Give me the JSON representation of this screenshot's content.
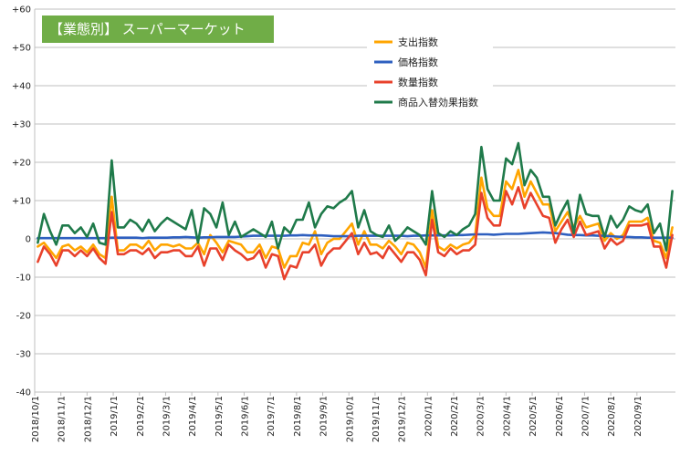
{
  "chart_data": {
    "type": "line",
    "title": "【業態別】 スーパーマーケット",
    "title_bg_color": "#70ad47",
    "ylim": [
      -40,
      60
    ],
    "yticks": [
      -40,
      -30,
      -20,
      -10,
      0,
      10,
      20,
      30,
      40,
      50,
      60
    ],
    "ytick_labels": [
      "-40",
      "-30",
      "-20",
      "-10",
      "0",
      "+10",
      "+20",
      "+30",
      "+40",
      "+50",
      "+60"
    ],
    "x_tick_labels": [
      "2018/10/1",
      "2018/11/1",
      "2018/12/1",
      "2019/1/1",
      "2019/2/1",
      "2019/3/1",
      "2019/4/1",
      "2019/5/1",
      "2019/6/1",
      "2019/7/1",
      "2019/8/1",
      "2019/9/1",
      "2019/10/1",
      "2019/11/1",
      "2019/12/1",
      "2020/1/1",
      "2020/2/1",
      "2020/3/1",
      "2020/4/1",
      "2020/5/1",
      "2020/6/1",
      "2020/7/1",
      "2020/8/1",
      "2020/9/1"
    ],
    "points_per_month": 4.25,
    "grid": "horizontal",
    "legend_position": "top-right",
    "series": [
      {
        "name": "支出指数",
        "color": "#ffa500",
        "values": [
          -2,
          -1,
          -3,
          -5,
          -2,
          -1.5,
          -3,
          -2,
          -3.5,
          -1.5,
          -4,
          -5,
          11,
          -3,
          -3,
          -1.5,
          -1.5,
          -2.5,
          -0.5,
          -3,
          -1.5,
          -1.5,
          -2,
          -1.5,
          -2.5,
          -2.5,
          -1,
          -4,
          1,
          -1,
          -3.5,
          -0.5,
          -1,
          -1.5,
          -3.5,
          -3.5,
          -1.5,
          -5,
          -2,
          -2.5,
          -7.5,
          -4.5,
          -4.5,
          -1,
          -1.5,
          2,
          -4,
          -1,
          0,
          0,
          2,
          4,
          -1.5,
          2,
          -1.5,
          -1.5,
          -2.5,
          -0.5,
          -2,
          -4,
          -1,
          -1.5,
          -3.5,
          -7.5,
          7.5,
          -2,
          -3,
          -1.5,
          -2.5,
          -1.5,
          -1,
          1,
          16,
          8,
          6,
          6,
          15,
          13,
          18,
          11,
          15,
          12,
          9,
          9,
          2,
          4.5,
          7,
          3,
          6,
          3,
          3.5,
          4,
          -0.5,
          1.5,
          0,
          1,
          4.5,
          4.5,
          4.5,
          5.5,
          -0.5,
          -1,
          -5,
          3
        ]
      },
      {
        "name": "価格指数",
        "color": "#2e5fbf",
        "values": [
          0.2,
          0.2,
          0.2,
          0.2,
          0.2,
          0.2,
          0.2,
          0.2,
          0.2,
          0.2,
          0.2,
          0.2,
          0.3,
          0.3,
          0.3,
          0.3,
          0.3,
          0.2,
          0.3,
          0.3,
          0.3,
          0.3,
          0.4,
          0.4,
          0.5,
          0.4,
          0.3,
          0.4,
          0.4,
          0.5,
          0.5,
          0.5,
          0.5,
          0.6,
          0.7,
          0.8,
          0.8,
          0.8,
          0.8,
          0.8,
          0.8,
          0.9,
          0.9,
          1,
          0.9,
          0.9,
          0.9,
          0.8,
          0.7,
          0.7,
          0.7,
          0.7,
          0.8,
          0.8,
          0.8,
          0.8,
          0.8,
          0.8,
          0.8,
          0.8,
          0.7,
          0.8,
          0.8,
          0.9,
          0.9,
          0.9,
          0.9,
          0.9,
          1,
          1,
          1.1,
          1.2,
          1.2,
          1.2,
          1.1,
          1.2,
          1.3,
          1.3,
          1.3,
          1.4,
          1.5,
          1.6,
          1.7,
          1.6,
          1.5,
          1.3,
          1.1,
          1,
          1,
          0.9,
          0.9,
          0.8,
          0.8,
          0.7,
          0.6,
          0.5,
          0.5,
          0.4,
          0.4,
          0.3,
          0.3,
          0.3,
          0.3,
          0.3
        ]
      },
      {
        "name": "数量指数",
        "color": "#e8412b",
        "values": [
          -6,
          -2,
          -4,
          -7,
          -3,
          -3,
          -4.5,
          -3,
          -4.5,
          -2.5,
          -5,
          -6.5,
          7,
          -4,
          -4,
          -3,
          -3,
          -4,
          -2.5,
          -5,
          -3.5,
          -3.5,
          -3,
          -3,
          -4.5,
          -4.5,
          -2,
          -7,
          -2.5,
          -2.5,
          -5.5,
          -1.5,
          -3,
          -4,
          -5.5,
          -5,
          -3,
          -7.5,
          -4,
          -4.5,
          -10.5,
          -7,
          -7.5,
          -3.5,
          -3.5,
          -1.5,
          -7,
          -4,
          -2.5,
          -2.5,
          -0.5,
          1.5,
          -4,
          -1,
          -4,
          -3.5,
          -5,
          -2,
          -4,
          -6,
          -3.5,
          -3.5,
          -5.5,
          -9.5,
          5,
          -3.5,
          -4.5,
          -2.5,
          -4,
          -3,
          -3,
          -1.5,
          12,
          5.5,
          3.5,
          3.5,
          12.5,
          9,
          13.5,
          8,
          12,
          9,
          6,
          5.5,
          -1,
          2.5,
          5,
          0.5,
          4.5,
          1,
          1.5,
          2,
          -2.5,
          0,
          -1.5,
          -0.5,
          3.5,
          3.5,
          3.5,
          4,
          -2,
          -2,
          -7.5,
          1
        ]
      },
      {
        "name": "商品入替効果指数",
        "color": "#1f7a4a",
        "values": [
          -1,
          6.5,
          2,
          -1.5,
          3.5,
          3.5,
          1.5,
          3,
          0.5,
          4,
          -1,
          -1.5,
          20.5,
          3,
          3,
          5,
          4,
          2,
          5,
          2,
          4,
          5.5,
          4.5,
          3.5,
          2.5,
          7.5,
          -1,
          8,
          6.5,
          3,
          9.5,
          1,
          4.5,
          0.5,
          1.5,
          2.5,
          1.5,
          0.5,
          4.5,
          -2.5,
          3,
          1.5,
          5,
          5,
          9.5,
          3,
          6.5,
          8.5,
          8,
          9.5,
          10.5,
          12.5,
          3,
          7.5,
          2,
          1,
          0.5,
          3.5,
          -0.5,
          1,
          3,
          2,
          1,
          -1.5,
          12.5,
          1.5,
          0.5,
          2,
          1,
          2.5,
          3.5,
          6.5,
          24,
          13,
          10,
          10,
          21,
          19.5,
          25,
          14,
          18,
          16,
          11,
          11,
          3.5,
          7,
          10,
          1.5,
          11.5,
          6.5,
          6,
          6,
          0.5,
          6,
          3,
          5,
          8.5,
          7.5,
          7,
          9,
          1.5,
          4,
          -3,
          12.5
        ]
      }
    ]
  }
}
